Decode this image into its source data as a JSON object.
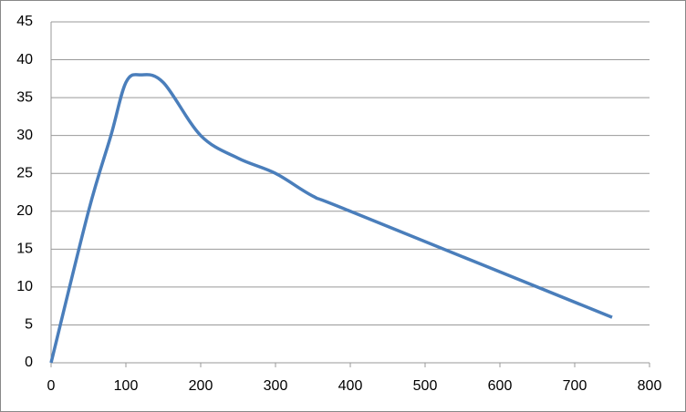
{
  "chart_data": {
    "type": "line",
    "x": [
      0,
      50,
      80,
      100,
      120,
      150,
      200,
      250,
      300,
      350,
      400,
      750
    ],
    "series": [
      {
        "color": "#4a7ebb",
        "values": [
          0,
          20,
          30,
          37,
          38,
          37,
          30,
          27,
          25,
          22,
          20,
          6
        ]
      }
    ],
    "xlim": [
      0,
      800
    ],
    "xticks": [
      0,
      100,
      200,
      300,
      400,
      500,
      600,
      700,
      800
    ],
    "ylim": [
      0,
      45
    ],
    "yticks": [
      0,
      5,
      10,
      15,
      20,
      25,
      30,
      35,
      40,
      45
    ],
    "grid": true,
    "smooth": true
  }
}
